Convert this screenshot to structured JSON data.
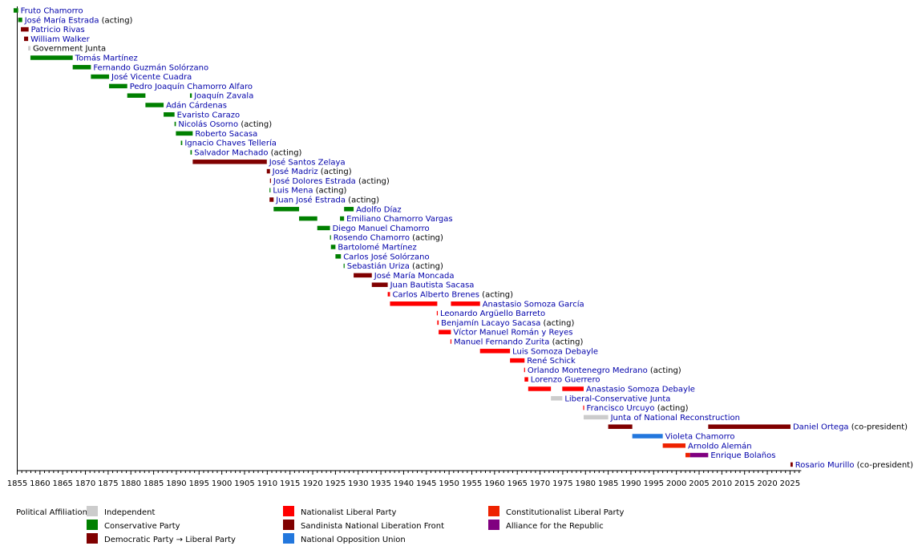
{
  "chart_data": {
    "type": "timeline",
    "xlim": [
      1855,
      2028
    ],
    "x_ticks": [
      "1855",
      "1860",
      "1865",
      "1870",
      "1875",
      "1880",
      "1885",
      "1890",
      "1895",
      "1900",
      "1905",
      "1910",
      "1915",
      "1920",
      "1925",
      "1930",
      "1935",
      "1940",
      "1945",
      "1950",
      "1955",
      "1960",
      "1965",
      "1970",
      "1975",
      "1980",
      "1985",
      "1990",
      "1995",
      "2000",
      "2005",
      "2010",
      "2015",
      "2020",
      "2025"
    ],
    "affiliations": {
      "ind": {
        "label": "Independent",
        "color": "#cccccc"
      },
      "con": {
        "label": "Conservative Party",
        "color": "#008000"
      },
      "lib": {
        "label": "Democratic Party → Liberal Party",
        "color": "#800000"
      },
      "pln": {
        "label": "Nationalist Liberal Party",
        "color": "#ff0000"
      },
      "fsln": {
        "label": "Sandinista National Liberation Front",
        "color": "#800000"
      },
      "uno": {
        "label": "National Opposition Union",
        "color": "#2277dd"
      },
      "plc": {
        "label": "Constitutionalist Liberal Party",
        "color": "#ee2200"
      },
      "apre": {
        "label": "Alliance for the Republic",
        "color": "#800080"
      }
    },
    "legend_title": "Political Affiliation:",
    "legend_order": [
      "ind",
      "con",
      "lib",
      "pln",
      "fsln",
      "uno",
      "plc",
      "apre"
    ],
    "presidents": [
      {
        "name": "Fruto Chamorro",
        "note": "",
        "terms": [
          {
            "start": 1854.2,
            "end": 1855.2,
            "aff": "con"
          }
        ]
      },
      {
        "name": "José María Estrada",
        "note": " (acting)",
        "terms": [
          {
            "start": 1855.2,
            "end": 1856.1,
            "aff": "con"
          }
        ]
      },
      {
        "name": "Patricio Rivas",
        "note": "",
        "terms": [
          {
            "start": 1855.8,
            "end": 1857.5,
            "aff": "lib"
          }
        ]
      },
      {
        "name": "William Walker",
        "note": "",
        "terms": [
          {
            "start": 1856.5,
            "end": 1857.4,
            "aff": "lib"
          }
        ]
      },
      {
        "name": "Government Junta",
        "note": "",
        "terms": [
          {
            "start": 1857.4,
            "end": 1857.9,
            "aff": "ind"
          }
        ]
      },
      {
        "name": "Tomás Martínez",
        "note": "",
        "terms": [
          {
            "start": 1857.9,
            "end": 1867.2,
            "aff": "con"
          }
        ]
      },
      {
        "name": "Fernando Guzmán Solórzano",
        "note": "",
        "terms": [
          {
            "start": 1867.2,
            "end": 1871.2,
            "aff": "con"
          }
        ]
      },
      {
        "name": "José Vicente Cuadra",
        "note": "",
        "terms": [
          {
            "start": 1871.2,
            "end": 1875.2,
            "aff": "con"
          }
        ]
      },
      {
        "name": "Pedro Joaquín Chamorro Alfaro",
        "note": "",
        "terms": [
          {
            "start": 1875.2,
            "end": 1879.2,
            "aff": "con"
          }
        ]
      },
      {
        "name": "Joaquín Zavala",
        "note": "",
        "terms": [
          {
            "start": 1879.2,
            "end": 1883.2,
            "aff": "con"
          },
          {
            "start": 1893.0,
            "end": 1893.4,
            "aff": "con"
          }
        ]
      },
      {
        "name": "Adán Cárdenas",
        "note": "",
        "terms": [
          {
            "start": 1883.2,
            "end": 1887.2,
            "aff": "con"
          }
        ]
      },
      {
        "name": "Evaristo Carazo",
        "note": "",
        "terms": [
          {
            "start": 1887.2,
            "end": 1889.6,
            "aff": "con"
          }
        ]
      },
      {
        "name": "Nicolás Osorno",
        "note": " (acting)",
        "terms": [
          {
            "start": 1889.6,
            "end": 1889.9,
            "aff": "con"
          }
        ]
      },
      {
        "name": "Roberto Sacasa",
        "note": "",
        "terms": [
          {
            "start": 1889.9,
            "end": 1893.6,
            "aff": "con"
          }
        ]
      },
      {
        "name": "Ignacio Chaves Tellería",
        "note": "",
        "terms": [
          {
            "start": 1891.0,
            "end": 1891.3,
            "aff": "con"
          }
        ]
      },
      {
        "name": "Salvador Machado",
        "note": " (acting)",
        "terms": [
          {
            "start": 1893.1,
            "end": 1893.4,
            "aff": "con"
          }
        ]
      },
      {
        "name": "José Santos Zelaya",
        "note": "",
        "terms": [
          {
            "start": 1893.6,
            "end": 1909.9,
            "aff": "lib"
          }
        ]
      },
      {
        "name": "José Madriz",
        "note": " (acting)",
        "terms": [
          {
            "start": 1909.9,
            "end": 1910.6,
            "aff": "lib"
          }
        ]
      },
      {
        "name": "José Dolores Estrada",
        "note": " (acting)",
        "terms": [
          {
            "start": 1910.6,
            "end": 1910.8,
            "aff": "lib"
          }
        ]
      },
      {
        "name": "Luis Mena",
        "note": " (acting)",
        "terms": [
          {
            "start": 1910.5,
            "end": 1910.7,
            "aff": "con"
          }
        ]
      },
      {
        "name": "Juan José Estrada",
        "note": " (acting)",
        "terms": [
          {
            "start": 1910.5,
            "end": 1911.4,
            "aff": "lib"
          }
        ]
      },
      {
        "name": "Adolfo Díaz",
        "note": "",
        "terms": [
          {
            "start": 1911.4,
            "end": 1917.0,
            "aff": "con"
          },
          {
            "start": 1926.9,
            "end": 1929.0,
            "aff": "con"
          }
        ]
      },
      {
        "name": "Emiliano Chamorro Vargas",
        "note": "",
        "terms": [
          {
            "start": 1917.0,
            "end": 1921.0,
            "aff": "con"
          },
          {
            "start": 1926.0,
            "end": 1926.9,
            "aff": "con"
          }
        ]
      },
      {
        "name": "Diego Manuel Chamorro",
        "note": "",
        "terms": [
          {
            "start": 1921.0,
            "end": 1923.8,
            "aff": "con"
          }
        ]
      },
      {
        "name": "Rosendo Chamorro",
        "note": " (acting)",
        "terms": [
          {
            "start": 1923.8,
            "end": 1924.0,
            "aff": "con"
          }
        ]
      },
      {
        "name": "Bartolomé Martínez",
        "note": "",
        "terms": [
          {
            "start": 1924.0,
            "end": 1925.0,
            "aff": "con"
          }
        ]
      },
      {
        "name": "Carlos José Solórzano",
        "note": "",
        "terms": [
          {
            "start": 1925.0,
            "end": 1926.2,
            "aff": "con"
          }
        ]
      },
      {
        "name": "Sebastián Uriza",
        "note": " (acting)",
        "terms": [
          {
            "start": 1926.8,
            "end": 1927.0,
            "aff": "con"
          }
        ]
      },
      {
        "name": "José María Moncada",
        "note": "",
        "terms": [
          {
            "start": 1929.0,
            "end": 1933.0,
            "aff": "lib"
          }
        ]
      },
      {
        "name": "Juan Bautista Sacasa",
        "note": "",
        "terms": [
          {
            "start": 1933.0,
            "end": 1936.5,
            "aff": "lib"
          }
        ]
      },
      {
        "name": "Carlos Alberto Brenes",
        "note": " (acting)",
        "terms": [
          {
            "start": 1936.5,
            "end": 1937.0,
            "aff": "pln"
          }
        ]
      },
      {
        "name": "Anastasio Somoza García",
        "note": "",
        "terms": [
          {
            "start": 1937.0,
            "end": 1947.4,
            "aff": "pln"
          },
          {
            "start": 1950.4,
            "end": 1956.8,
            "aff": "pln"
          }
        ]
      },
      {
        "name": "Leonardo Argüello Barreto",
        "note": "",
        "terms": [
          {
            "start": 1947.3,
            "end": 1947.5,
            "aff": "pln"
          }
        ]
      },
      {
        "name": "Benjamín Lacayo Sacasa",
        "note": " (acting)",
        "terms": [
          {
            "start": 1947.4,
            "end": 1947.7,
            "aff": "pln"
          }
        ]
      },
      {
        "name": "Víctor Manuel Román y Reyes",
        "note": "",
        "terms": [
          {
            "start": 1947.7,
            "end": 1950.4,
            "aff": "pln"
          }
        ]
      },
      {
        "name": "Manuel Fernando Zurita",
        "note": " (acting)",
        "terms": [
          {
            "start": 1950.3,
            "end": 1950.5,
            "aff": "pln"
          }
        ]
      },
      {
        "name": "Luis Somoza Debayle",
        "note": "",
        "terms": [
          {
            "start": 1956.8,
            "end": 1963.4,
            "aff": "pln"
          }
        ]
      },
      {
        "name": "René Schick",
        "note": "",
        "terms": [
          {
            "start": 1963.4,
            "end": 1966.6,
            "aff": "pln"
          }
        ]
      },
      {
        "name": "Orlando Montenegro Medrano",
        "note": " (acting)",
        "terms": [
          {
            "start": 1966.5,
            "end": 1966.7,
            "aff": "pln"
          }
        ]
      },
      {
        "name": "Lorenzo Guerrero",
        "note": "",
        "terms": [
          {
            "start": 1966.6,
            "end": 1967.4,
            "aff": "pln"
          }
        ]
      },
      {
        "name": "Anastasio Somoza Debayle",
        "note": "",
        "terms": [
          {
            "start": 1967.4,
            "end": 1972.4,
            "aff": "pln"
          },
          {
            "start": 1974.9,
            "end": 1979.6,
            "aff": "pln"
          }
        ]
      },
      {
        "name": "Liberal-Conservative Junta",
        "note": "",
        "terms": [
          {
            "start": 1972.4,
            "end": 1974.9,
            "aff": "ind"
          }
        ]
      },
      {
        "name": "Francisco Urcuyo",
        "note": " (acting)",
        "terms": [
          {
            "start": 1979.5,
            "end": 1979.7,
            "aff": "pln"
          }
        ]
      },
      {
        "name": "Junta of National Reconstruction",
        "note": "",
        "terms": [
          {
            "start": 1979.6,
            "end": 1985.0,
            "aff": "ind"
          }
        ]
      },
      {
        "name": "Daniel Ortega",
        "note": " (co-president)",
        "terms": [
          {
            "start": 1985.0,
            "end": 1990.3,
            "aff": "fsln"
          },
          {
            "start": 2007.0,
            "end": 2025.1,
            "aff": "fsln"
          }
        ]
      },
      {
        "name": "Violeta Chamorro",
        "note": "",
        "terms": [
          {
            "start": 1990.3,
            "end": 1997.0,
            "aff": "uno"
          }
        ]
      },
      {
        "name": "Arnoldo Alemán",
        "note": "",
        "terms": [
          {
            "start": 1997.0,
            "end": 2002.0,
            "aff": "plc"
          }
        ]
      },
      {
        "name": "Enrique Bolaños",
        "note": "",
        "terms": [
          {
            "start": 2002.0,
            "end": 2003.0,
            "aff": "plc"
          },
          {
            "start": 2003.0,
            "end": 2007.0,
            "aff": "apre"
          }
        ]
      },
      {
        "name": "Rosario Murillo",
        "note": " (co-president)",
        "terms": [
          {
            "start": 2025.1,
            "end": 2025.6,
            "aff": "fsln"
          }
        ]
      }
    ]
  }
}
